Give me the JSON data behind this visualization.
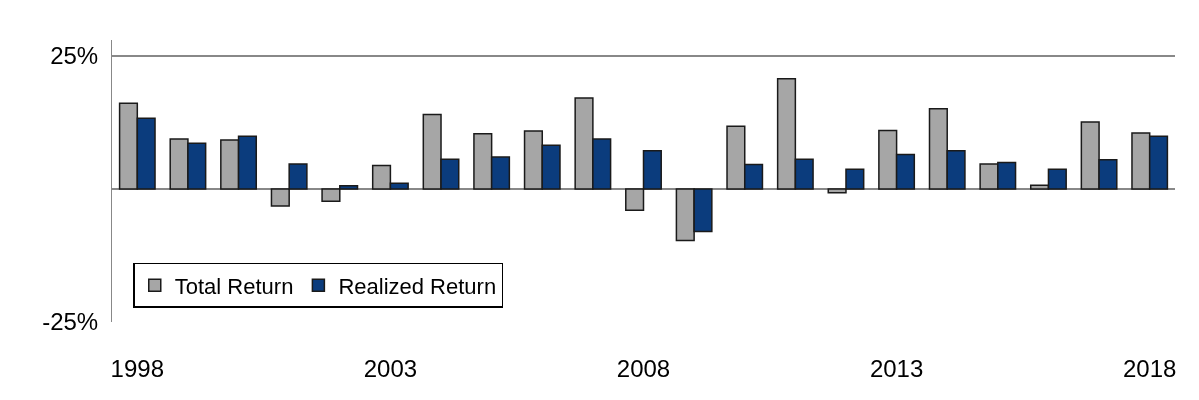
{
  "chart_data": {
    "type": "bar",
    "categories": [
      "1998",
      null,
      null,
      null,
      null,
      "2003",
      null,
      null,
      null,
      null,
      "2008",
      null,
      null,
      null,
      null,
      "2013",
      null,
      null,
      null,
      null,
      "2018"
    ],
    "series": [
      {
        "name": "Total Return",
        "color": "#a6a6a6",
        "values": [
          16.1,
          9.4,
          9.2,
          -3.2,
          -2.3,
          4.4,
          14.0,
          10.4,
          10.9,
          17.1,
          -4.0,
          -9.7,
          11.8,
          20.7,
          -0.7,
          11.0,
          15.1,
          4.7,
          0.7,
          12.6,
          10.5
        ]
      },
      {
        "name": "Realized Return",
        "color": "#0b3c7d",
        "values": [
          13.3,
          8.6,
          9.9,
          4.7,
          0.6,
          1.1,
          5.6,
          6.0,
          8.2,
          9.4,
          7.2,
          -8.0,
          4.6,
          5.6,
          3.7,
          6.5,
          7.2,
          5.0,
          3.7,
          5.5,
          9.9
        ]
      }
    ],
    "ylim": [
      -25,
      28
    ],
    "yticks": [
      {
        "value": 25,
        "label": "25%"
      },
      {
        "value": -25,
        "label": "-25%"
      }
    ],
    "grid": "y",
    "legend": "bottom left"
  }
}
